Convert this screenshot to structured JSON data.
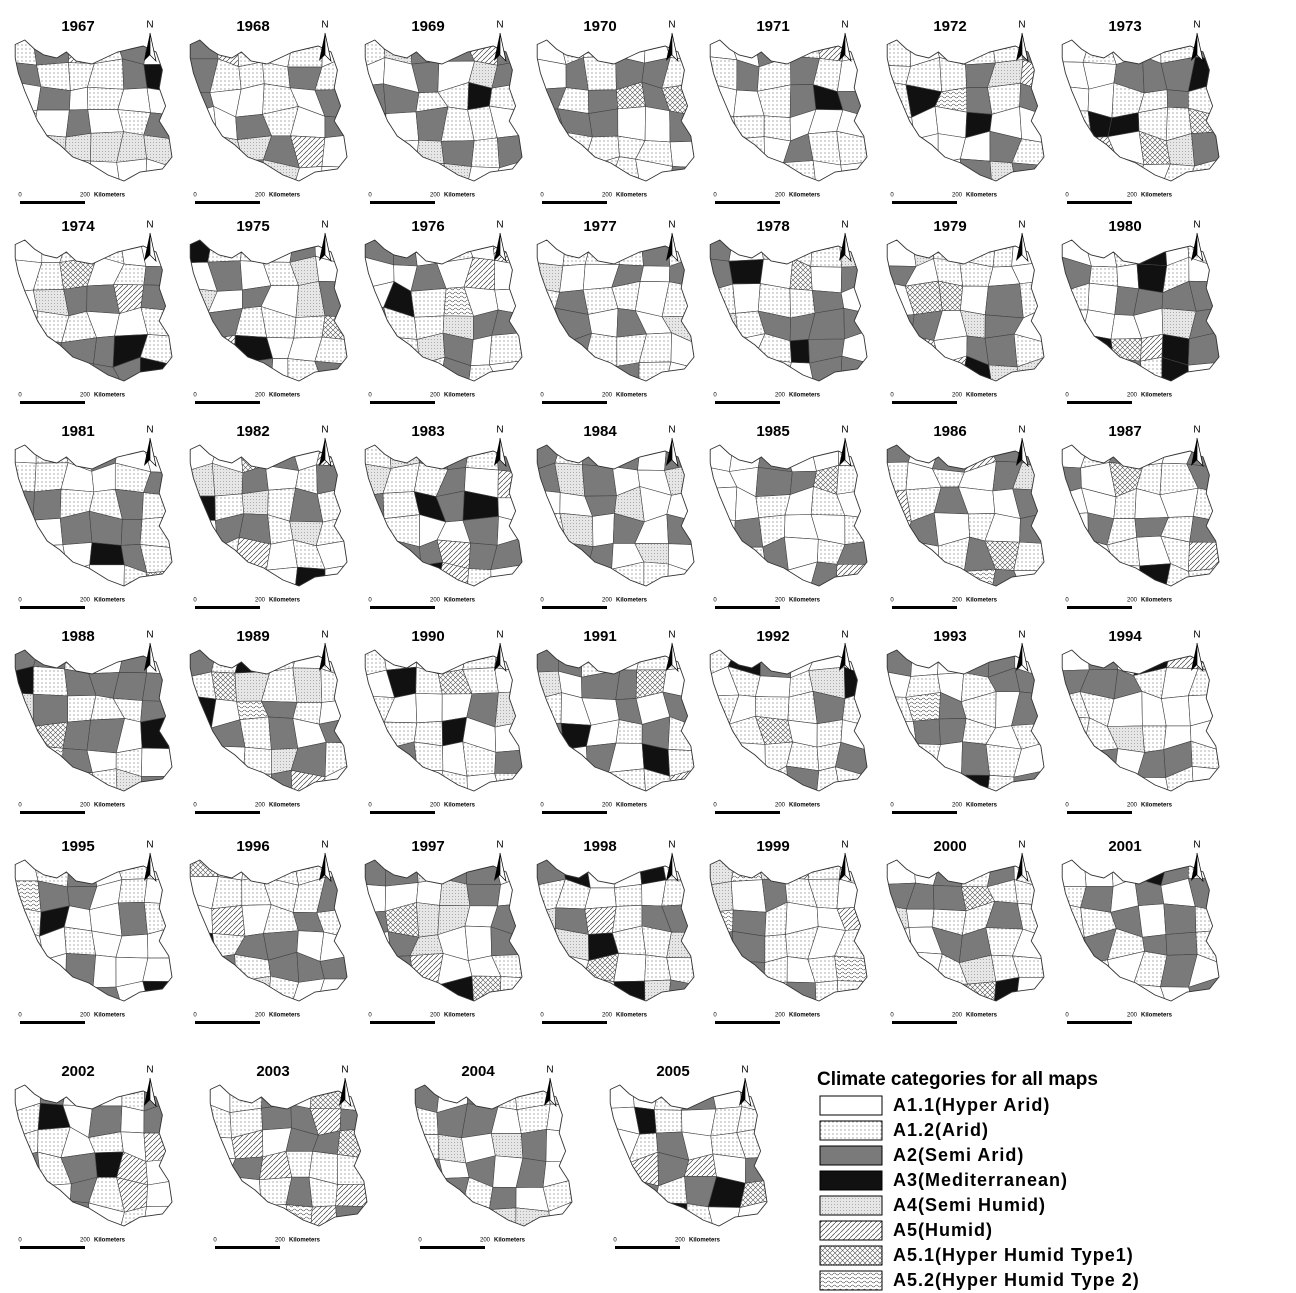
{
  "maps": [
    {
      "year": "1967",
      "north": "N",
      "scale_start": "0",
      "scale_end": "200",
      "scale_unit": "Kilometers"
    },
    {
      "year": "1968",
      "north": "N",
      "scale_start": "0",
      "scale_end": "200",
      "scale_unit": "Kilometers"
    },
    {
      "year": "1969",
      "north": "N",
      "scale_start": "0",
      "scale_end": "200",
      "scale_unit": "Kilometers"
    },
    {
      "year": "1970",
      "north": "N",
      "scale_start": "0",
      "scale_end": "200",
      "scale_unit": "Kilometers"
    },
    {
      "year": "1971",
      "north": "N",
      "scale_start": "0",
      "scale_end": "200",
      "scale_unit": "Kilometers"
    },
    {
      "year": "1972",
      "north": "N",
      "scale_start": "0",
      "scale_end": "200",
      "scale_unit": "Kilometers"
    },
    {
      "year": "1973",
      "north": "N",
      "scale_start": "0",
      "scale_end": "200",
      "scale_unit": "Kilometers"
    },
    {
      "year": "1974",
      "north": "N",
      "scale_start": "0",
      "scale_end": "200",
      "scale_unit": "Kilometers"
    },
    {
      "year": "1975",
      "north": "N",
      "scale_start": "0",
      "scale_end": "200",
      "scale_unit": "Kilometers"
    },
    {
      "year": "1976",
      "north": "N",
      "scale_start": "0",
      "scale_end": "200",
      "scale_unit": "Kilometers"
    },
    {
      "year": "1977",
      "north": "N",
      "scale_start": "0",
      "scale_end": "200",
      "scale_unit": "Kilometers"
    },
    {
      "year": "1978",
      "north": "N",
      "scale_start": "0",
      "scale_end": "200",
      "scale_unit": "Kilometers"
    },
    {
      "year": "1979",
      "north": "N",
      "scale_start": "0",
      "scale_end": "200",
      "scale_unit": "Kilometers"
    },
    {
      "year": "1980",
      "north": "N",
      "scale_start": "0",
      "scale_end": "200",
      "scale_unit": "Kilometers"
    },
    {
      "year": "1981",
      "north": "N",
      "scale_start": "0",
      "scale_end": "200",
      "scale_unit": "Kilometers"
    },
    {
      "year": "1982",
      "north": "N",
      "scale_start": "0",
      "scale_end": "200",
      "scale_unit": "Kilometers"
    },
    {
      "year": "1983",
      "north": "N",
      "scale_start": "0",
      "scale_end": "200",
      "scale_unit": "Kilometers"
    },
    {
      "year": "1984",
      "north": "N",
      "scale_start": "0",
      "scale_end": "200",
      "scale_unit": "Kilometers"
    },
    {
      "year": "1985",
      "north": "N",
      "scale_start": "0",
      "scale_end": "200",
      "scale_unit": "Kilometers"
    },
    {
      "year": "1986",
      "north": "N",
      "scale_start": "0",
      "scale_end": "200",
      "scale_unit": "Kilometers"
    },
    {
      "year": "1987",
      "north": "N",
      "scale_start": "0",
      "scale_end": "200",
      "scale_unit": "Kilometers"
    },
    {
      "year": "1988",
      "north": "N",
      "scale_start": "0",
      "scale_end": "200",
      "scale_unit": "Kilometers"
    },
    {
      "year": "1989",
      "north": "N",
      "scale_start": "0",
      "scale_end": "200",
      "scale_unit": "Kilometers"
    },
    {
      "year": "1990",
      "north": "N",
      "scale_start": "0",
      "scale_end": "200",
      "scale_unit": "Kilometers"
    },
    {
      "year": "1991",
      "north": "N",
      "scale_start": "0",
      "scale_end": "200",
      "scale_unit": "Kilometers"
    },
    {
      "year": "1992",
      "north": "N",
      "scale_start": "0",
      "scale_end": "200",
      "scale_unit": "Kilometers"
    },
    {
      "year": "1993",
      "north": "N",
      "scale_start": "0",
      "scale_end": "200",
      "scale_unit": "Kilometers"
    },
    {
      "year": "1994",
      "north": "N",
      "scale_start": "0",
      "scale_end": "200",
      "scale_unit": "Kilometers"
    },
    {
      "year": "1995",
      "north": "N",
      "scale_start": "0",
      "scale_end": "200",
      "scale_unit": "Kilometers"
    },
    {
      "year": "1996",
      "north": "N",
      "scale_start": "0",
      "scale_end": "200",
      "scale_unit": "Kilometers"
    },
    {
      "year": "1997",
      "north": "N",
      "scale_start": "0",
      "scale_end": "200",
      "scale_unit": "Kilometers"
    },
    {
      "year": "1998",
      "north": "N",
      "scale_start": "0",
      "scale_end": "200",
      "scale_unit": "Kilometers"
    },
    {
      "year": "1999",
      "north": "N",
      "scale_start": "0",
      "scale_end": "200",
      "scale_unit": "Kilometers"
    },
    {
      "year": "2000",
      "north": "N",
      "scale_start": "0",
      "scale_end": "200",
      "scale_unit": "Kilometers"
    },
    {
      "year": "2001",
      "north": "N",
      "scale_start": "0",
      "scale_end": "200",
      "scale_unit": "Kilometers"
    },
    {
      "year": "2002",
      "north": "N",
      "scale_start": "0",
      "scale_end": "200",
      "scale_unit": "Kilometers"
    },
    {
      "year": "2003",
      "north": "N",
      "scale_start": "0",
      "scale_end": "200",
      "scale_unit": "Kilometers"
    },
    {
      "year": "2004",
      "north": "N",
      "scale_start": "0",
      "scale_end": "200",
      "scale_unit": "Kilometers"
    },
    {
      "year": "2005",
      "north": "N",
      "scale_start": "0",
      "scale_end": "200",
      "scale_unit": "Kilometers"
    }
  ],
  "legend": {
    "title": "Climate categories for all maps",
    "items": [
      "A1.1(Hyper Arid)",
      "A1.2(Arid)",
      "A2(Semi Arid)",
      "A3(Mediterranean)",
      "A4(Semi Humid)",
      "A5(Humid)",
      "A5.1(Hyper Humid Type1)",
      "A5.2(Hyper Humid Type 2)"
    ]
  }
}
